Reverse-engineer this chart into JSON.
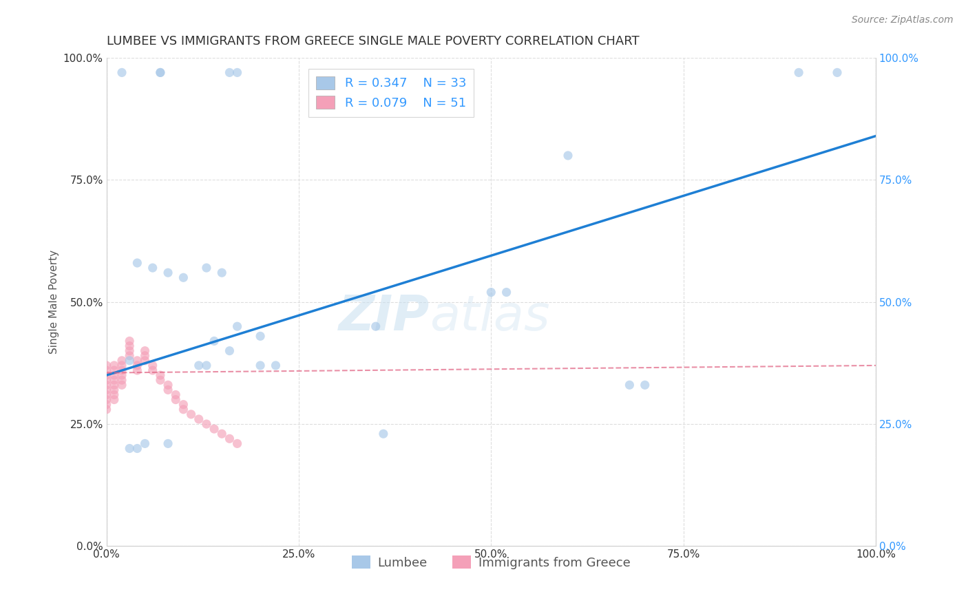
{
  "title": "LUMBEE VS IMMIGRANTS FROM GREECE SINGLE MALE POVERTY CORRELATION CHART",
  "source": "Source: ZipAtlas.com",
  "ylabel": "Single Male Poverty",
  "xlim": [
    0,
    1.0
  ],
  "ylim": [
    0,
    1.0
  ],
  "lumbee_color": "#a8c8e8",
  "greece_color": "#f4a0b8",
  "lumbee_line_color": "#1e7fd4",
  "greece_line_color": "#e06080",
  "watermark_zip": "ZIP",
  "watermark_atlas": "atlas",
  "legend_r1": "R = 0.347",
  "legend_n1": "N = 33",
  "legend_r2": "R = 0.079",
  "legend_n2": "N = 51",
  "lumbee_label": "Lumbee",
  "greece_label": "Immigrants from Greece",
  "lumbee_x": [
    0.02,
    0.07,
    0.07,
    0.16,
    0.17,
    0.04,
    0.06,
    0.08,
    0.1,
    0.13,
    0.15,
    0.17,
    0.2,
    0.03,
    0.12,
    0.13,
    0.14,
    0.16,
    0.2,
    0.22,
    0.35,
    0.36,
    0.5,
    0.52,
    0.6,
    0.68,
    0.7,
    0.9,
    0.03,
    0.04,
    0.05,
    0.08,
    0.95
  ],
  "lumbee_y": [
    0.97,
    0.97,
    0.97,
    0.97,
    0.97,
    0.58,
    0.57,
    0.56,
    0.55,
    0.57,
    0.56,
    0.45,
    0.43,
    0.38,
    0.37,
    0.37,
    0.42,
    0.4,
    0.37,
    0.37,
    0.45,
    0.23,
    0.52,
    0.52,
    0.8,
    0.33,
    0.33,
    0.97,
    0.2,
    0.2,
    0.21,
    0.21,
    0.97
  ],
  "greece_x": [
    0.0,
    0.0,
    0.0,
    0.0,
    0.0,
    0.0,
    0.0,
    0.0,
    0.0,
    0.0,
    0.01,
    0.01,
    0.01,
    0.01,
    0.01,
    0.01,
    0.01,
    0.01,
    0.02,
    0.02,
    0.02,
    0.02,
    0.02,
    0.02,
    0.03,
    0.03,
    0.03,
    0.03,
    0.04,
    0.04,
    0.04,
    0.05,
    0.05,
    0.05,
    0.06,
    0.06,
    0.07,
    0.07,
    0.08,
    0.08,
    0.09,
    0.09,
    0.1,
    0.1,
    0.11,
    0.12,
    0.13,
    0.14,
    0.15,
    0.16,
    0.17
  ],
  "greece_y": [
    0.37,
    0.36,
    0.35,
    0.34,
    0.33,
    0.32,
    0.31,
    0.3,
    0.29,
    0.28,
    0.37,
    0.36,
    0.35,
    0.34,
    0.33,
    0.32,
    0.31,
    0.3,
    0.38,
    0.37,
    0.36,
    0.35,
    0.34,
    0.33,
    0.42,
    0.41,
    0.4,
    0.39,
    0.38,
    0.37,
    0.36,
    0.4,
    0.39,
    0.38,
    0.37,
    0.36,
    0.35,
    0.34,
    0.33,
    0.32,
    0.31,
    0.3,
    0.29,
    0.28,
    0.27,
    0.26,
    0.25,
    0.24,
    0.23,
    0.22,
    0.21
  ],
  "title_fontsize": 13,
  "axis_label_fontsize": 11,
  "tick_fontsize": 11,
  "legend_fontsize": 13,
  "source_fontsize": 10,
  "marker_size": 90,
  "marker_alpha": 0.65,
  "grid_color": "#dddddd",
  "background_color": "#ffffff",
  "right_axis_color": "#3399ff",
  "lumbee_line_start_y": 0.35,
  "lumbee_line_end_y": 0.84,
  "greece_line_start_y": 0.355,
  "greece_line_end_y": 0.37
}
